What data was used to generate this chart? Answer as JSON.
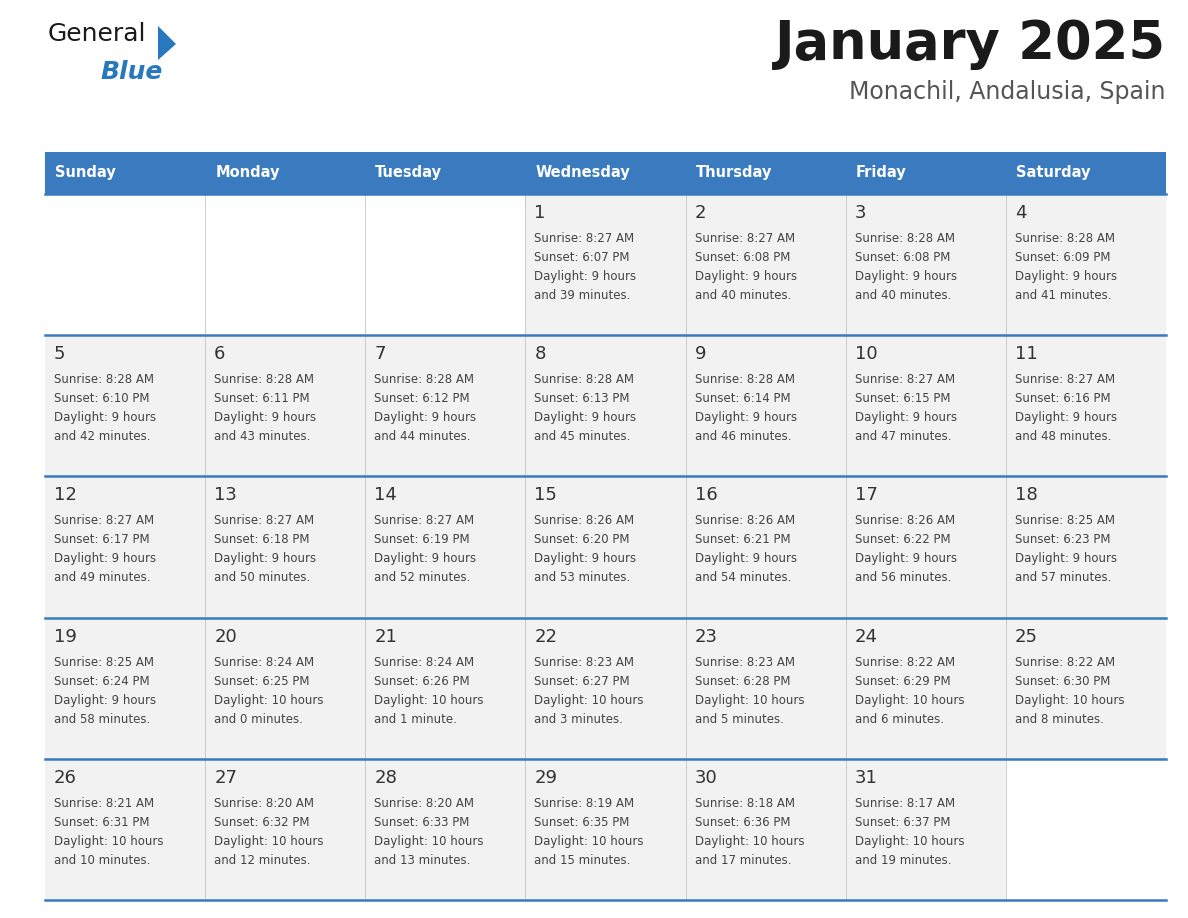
{
  "title": "January 2025",
  "subtitle": "Monachil, Andalusia, Spain",
  "header_bg": "#3a7bbf",
  "header_text_color": "#ffffff",
  "cell_bg_light": "#f2f2f2",
  "cell_bg_white": "#ffffff",
  "cell_text_color": "#444444",
  "day_number_color": "#333333",
  "separator_color": "#3a7bbf",
  "days_of_week": [
    "Sunday",
    "Monday",
    "Tuesday",
    "Wednesday",
    "Thursday",
    "Friday",
    "Saturday"
  ],
  "calendar_data": [
    [
      {
        "day": "",
        "sunrise": "",
        "sunset": "",
        "daylight": ""
      },
      {
        "day": "",
        "sunrise": "",
        "sunset": "",
        "daylight": ""
      },
      {
        "day": "",
        "sunrise": "",
        "sunset": "",
        "daylight": ""
      },
      {
        "day": "1",
        "sunrise": "8:27 AM",
        "sunset": "6:07 PM",
        "daylight": "9 hours\nand 39 minutes."
      },
      {
        "day": "2",
        "sunrise": "8:27 AM",
        "sunset": "6:08 PM",
        "daylight": "9 hours\nand 40 minutes."
      },
      {
        "day": "3",
        "sunrise": "8:28 AM",
        "sunset": "6:08 PM",
        "daylight": "9 hours\nand 40 minutes."
      },
      {
        "day": "4",
        "sunrise": "8:28 AM",
        "sunset": "6:09 PM",
        "daylight": "9 hours\nand 41 minutes."
      }
    ],
    [
      {
        "day": "5",
        "sunrise": "8:28 AM",
        "sunset": "6:10 PM",
        "daylight": "9 hours\nand 42 minutes."
      },
      {
        "day": "6",
        "sunrise": "8:28 AM",
        "sunset": "6:11 PM",
        "daylight": "9 hours\nand 43 minutes."
      },
      {
        "day": "7",
        "sunrise": "8:28 AM",
        "sunset": "6:12 PM",
        "daylight": "9 hours\nand 44 minutes."
      },
      {
        "day": "8",
        "sunrise": "8:28 AM",
        "sunset": "6:13 PM",
        "daylight": "9 hours\nand 45 minutes."
      },
      {
        "day": "9",
        "sunrise": "8:28 AM",
        "sunset": "6:14 PM",
        "daylight": "9 hours\nand 46 minutes."
      },
      {
        "day": "10",
        "sunrise": "8:27 AM",
        "sunset": "6:15 PM",
        "daylight": "9 hours\nand 47 minutes."
      },
      {
        "day": "11",
        "sunrise": "8:27 AM",
        "sunset": "6:16 PM",
        "daylight": "9 hours\nand 48 minutes."
      }
    ],
    [
      {
        "day": "12",
        "sunrise": "8:27 AM",
        "sunset": "6:17 PM",
        "daylight": "9 hours\nand 49 minutes."
      },
      {
        "day": "13",
        "sunrise": "8:27 AM",
        "sunset": "6:18 PM",
        "daylight": "9 hours\nand 50 minutes."
      },
      {
        "day": "14",
        "sunrise": "8:27 AM",
        "sunset": "6:19 PM",
        "daylight": "9 hours\nand 52 minutes."
      },
      {
        "day": "15",
        "sunrise": "8:26 AM",
        "sunset": "6:20 PM",
        "daylight": "9 hours\nand 53 minutes."
      },
      {
        "day": "16",
        "sunrise": "8:26 AM",
        "sunset": "6:21 PM",
        "daylight": "9 hours\nand 54 minutes."
      },
      {
        "day": "17",
        "sunrise": "8:26 AM",
        "sunset": "6:22 PM",
        "daylight": "9 hours\nand 56 minutes."
      },
      {
        "day": "18",
        "sunrise": "8:25 AM",
        "sunset": "6:23 PM",
        "daylight": "9 hours\nand 57 minutes."
      }
    ],
    [
      {
        "day": "19",
        "sunrise": "8:25 AM",
        "sunset": "6:24 PM",
        "daylight": "9 hours\nand 58 minutes."
      },
      {
        "day": "20",
        "sunrise": "8:24 AM",
        "sunset": "6:25 PM",
        "daylight": "10 hours\nand 0 minutes."
      },
      {
        "day": "21",
        "sunrise": "8:24 AM",
        "sunset": "6:26 PM",
        "daylight": "10 hours\nand 1 minute."
      },
      {
        "day": "22",
        "sunrise": "8:23 AM",
        "sunset": "6:27 PM",
        "daylight": "10 hours\nand 3 minutes."
      },
      {
        "day": "23",
        "sunrise": "8:23 AM",
        "sunset": "6:28 PM",
        "daylight": "10 hours\nand 5 minutes."
      },
      {
        "day": "24",
        "sunrise": "8:22 AM",
        "sunset": "6:29 PM",
        "daylight": "10 hours\nand 6 minutes."
      },
      {
        "day": "25",
        "sunrise": "8:22 AM",
        "sunset": "6:30 PM",
        "daylight": "10 hours\nand 8 minutes."
      }
    ],
    [
      {
        "day": "26",
        "sunrise": "8:21 AM",
        "sunset": "6:31 PM",
        "daylight": "10 hours\nand 10 minutes."
      },
      {
        "day": "27",
        "sunrise": "8:20 AM",
        "sunset": "6:32 PM",
        "daylight": "10 hours\nand 12 minutes."
      },
      {
        "day": "28",
        "sunrise": "8:20 AM",
        "sunset": "6:33 PM",
        "daylight": "10 hours\nand 13 minutes."
      },
      {
        "day": "29",
        "sunrise": "8:19 AM",
        "sunset": "6:35 PM",
        "daylight": "10 hours\nand 15 minutes."
      },
      {
        "day": "30",
        "sunrise": "8:18 AM",
        "sunset": "6:36 PM",
        "daylight": "10 hours\nand 17 minutes."
      },
      {
        "day": "31",
        "sunrise": "8:17 AM",
        "sunset": "6:37 PM",
        "daylight": "10 hours\nand 19 minutes."
      },
      {
        "day": "",
        "sunrise": "",
        "sunset": "",
        "daylight": ""
      }
    ]
  ],
  "logo_general_color": "#1a1a1a",
  "logo_blue_color": "#2878be",
  "logo_triangle_color": "#2878be",
  "figwidth": 11.88,
  "figheight": 9.18,
  "dpi": 100
}
